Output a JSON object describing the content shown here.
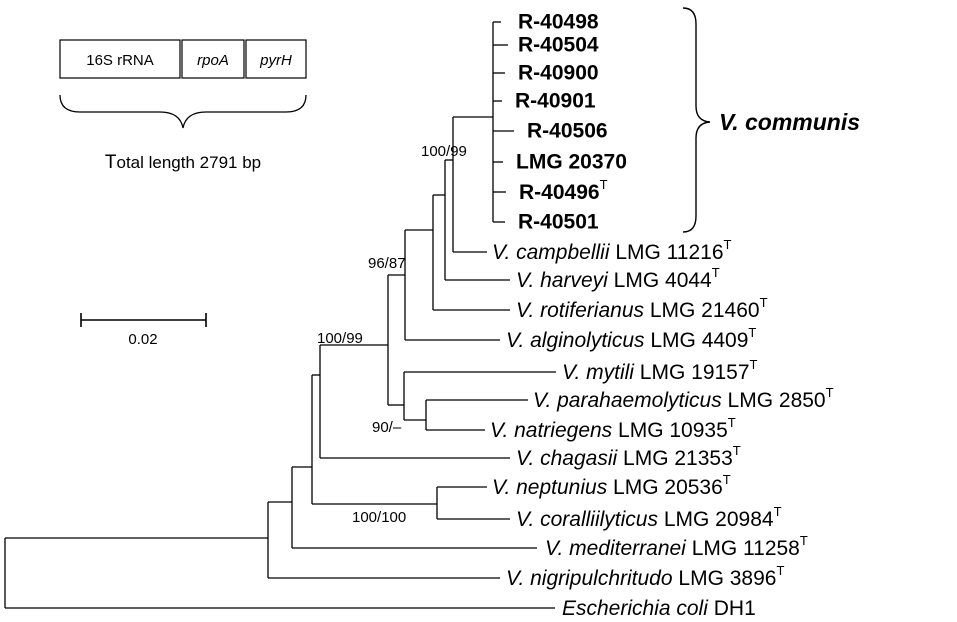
{
  "legend": {
    "genes": [
      "16S rRNA",
      "rpoA",
      "pyrH"
    ],
    "total_prefix": "T",
    "total_rest": "otal length 2791 bp"
  },
  "scale_bar": {
    "value": "0.02"
  },
  "clade_label": "V. communis",
  "strains": [
    {
      "code": "R-40498",
      "type": false
    },
    {
      "code": "R-40504",
      "type": false
    },
    {
      "code": "R-40900",
      "type": false
    },
    {
      "code": "R-40901",
      "type": false
    },
    {
      "code": "R-40506",
      "type": false
    },
    {
      "code": "LMG 20370",
      "type": false
    },
    {
      "code": "R-40496",
      "type": true
    },
    {
      "code": "R-40501",
      "type": false
    }
  ],
  "taxa": [
    {
      "species": "V. campbellii",
      "strain": "LMG 11216",
      "type": true
    },
    {
      "species": "V. harveyi",
      "strain": "LMG 4044",
      "type": true
    },
    {
      "species": "V. rotiferianus",
      "strain": "LMG 21460",
      "type": true
    },
    {
      "species": "V. alginolyticus",
      "strain": "LMG 4409",
      "type": true
    },
    {
      "species": "V. mytili",
      "strain": "LMG 19157",
      "type": true
    },
    {
      "species": "V. parahaemolyticus",
      "strain": "LMG 2850",
      "type": true
    },
    {
      "species": "V. natriegens",
      "strain": "LMG 10935",
      "type": true
    },
    {
      "species": "V. chagasii",
      "strain": "LMG 21353",
      "type": true
    },
    {
      "species": "V. neptunius",
      "strain": "LMG 20536",
      "type": true
    },
    {
      "species": "V. coralliilyticus",
      "strain": "LMG 20984",
      "type": true
    },
    {
      "species": "V. mediterranei",
      "strain": "LMG 11258",
      "type": true
    },
    {
      "species": "V. nigripulchritudo",
      "strain": "LMG 3896",
      "type": true
    },
    {
      "species": "Escherichia coli",
      "strain": "DH1",
      "type": false
    }
  ],
  "type_mark": "T",
  "bootstrap": {
    "communis": "100/99",
    "harveyi_group": "96/87",
    "main": "100/99",
    "natriegens": "90/–",
    "neptunius": "100/100"
  }
}
